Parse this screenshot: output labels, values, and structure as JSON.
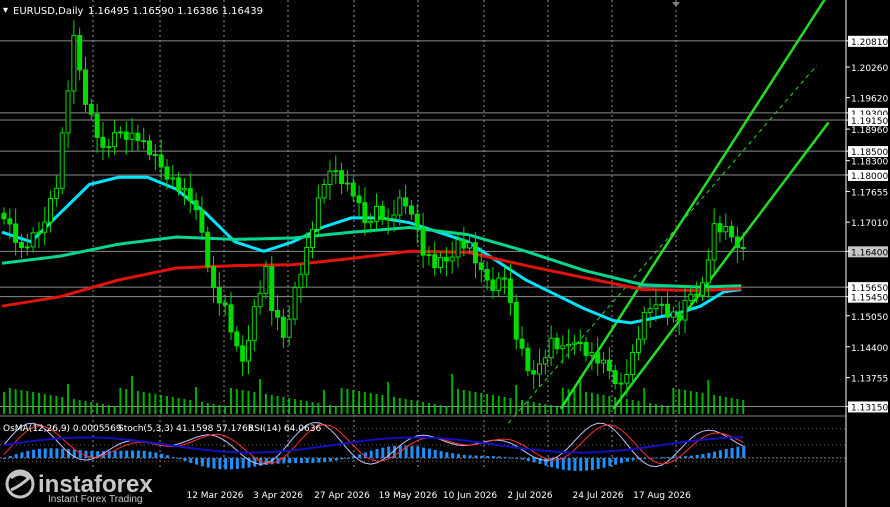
{
  "header": {
    "symbol": "EURUSD,Daily",
    "ohlc": "1.16495 1.16590 1.16386 1.16439"
  },
  "indicator_header": {
    "osma": "OsMA(12,26,9) 0.0005569",
    "stoch": "Stoch(5,3,3) 41.1598 57.1765",
    "rsi": "RSI(14) 64.0636"
  },
  "watermark": {
    "brand": "instaforex",
    "tagline": "Instant Forex Trading"
  },
  "colors": {
    "background": "#000000",
    "candle": "#00dc00",
    "ema_fast": "#00e5ff",
    "ema_mid": "#00d890",
    "ema_slow": "#e0140c",
    "channel": "#20e020",
    "level_line": "#8c8c8c",
    "grid": "#ffffff",
    "label_bg": "#ffffff",
    "current_label_bg": "#c8c8c8",
    "osma": "#1e90ff",
    "stoch_main": "#c0c0ff",
    "stoch_signal": "#ff3030",
    "rsi": "#1010c0"
  },
  "chart_data": {
    "type": "line",
    "title": "EURUSD,Daily",
    "x_ticks": [
      "12 Mar 2026",
      "3 Apr 2026",
      "27 Apr 2026",
      "19 May 2026",
      "10 Jun 2026",
      "2 Jul 2026",
      "24 Jul 2026",
      "17 Aug 2026"
    ],
    "y_ticks": [
      "1.20810",
      "1.20260",
      "1.19620",
      "1.19300",
      "1.19150",
      "1.18960",
      "1.18500",
      "1.18300",
      "1.18000",
      "1.17655",
      "1.17010",
      "1.16400",
      "1.15650",
      "1.15450",
      "1.15050",
      "1.14400",
      "1.13755",
      "1.13150"
    ],
    "highlight_levels": [
      "1.20810",
      "1.19300",
      "1.19150",
      "1.18500",
      "1.18000",
      "1.16400",
      "1.15650",
      "1.15450",
      "1.13150"
    ],
    "current_price": "1.16400",
    "ylim": [
      1.1295,
      1.2133
    ],
    "price_path": [
      [
        0,
        1.172
      ],
      [
        3,
        1.164
      ],
      [
        6,
        1.168
      ],
      [
        9,
        1.178
      ],
      [
        12,
        1.208
      ],
      [
        14,
        1.196
      ],
      [
        17,
        1.185
      ],
      [
        20,
        1.189
      ],
      [
        23,
        1.188
      ],
      [
        26,
        1.183
      ],
      [
        29,
        1.179
      ],
      [
        32,
        1.175
      ],
      [
        34,
        1.168
      ],
      [
        36,
        1.156
      ],
      [
        38,
        1.152
      ],
      [
        40,
        1.143
      ],
      [
        41,
        1.141
      ],
      [
        43,
        1.152
      ],
      [
        45,
        1.16
      ],
      [
        46,
        1.152
      ],
      [
        48,
        1.146
      ],
      [
        50,
        1.156
      ],
      [
        52,
        1.164
      ],
      [
        54,
        1.174
      ],
      [
        56,
        1.182
      ],
      [
        58,
        1.179
      ],
      [
        60,
        1.176
      ],
      [
        62,
        1.17
      ],
      [
        64,
        1.173
      ],
      [
        66,
        1.17
      ],
      [
        68,
        1.174
      ],
      [
        70,
        1.173
      ],
      [
        72,
        1.164
      ],
      [
        74,
        1.161
      ],
      [
        76,
        1.162
      ],
      [
        78,
        1.166
      ],
      [
        80,
        1.165
      ],
      [
        82,
        1.159
      ],
      [
        84,
        1.157
      ],
      [
        86,
        1.159
      ],
      [
        88,
        1.146
      ],
      [
        90,
        1.139
      ],
      [
        92,
        1.14
      ],
      [
        94,
        1.145
      ],
      [
        96,
        1.143
      ],
      [
        98,
        1.146
      ],
      [
        100,
        1.143
      ],
      [
        102,
        1.141
      ],
      [
        104,
        1.139
      ],
      [
        106,
        1.136
      ],
      [
        108,
        1.142
      ],
      [
        110,
        1.15
      ],
      [
        112,
        1.154
      ],
      [
        114,
        1.151
      ],
      [
        116,
        1.15
      ],
      [
        118,
        1.155
      ],
      [
        120,
        1.157
      ],
      [
        122,
        1.169
      ],
      [
        124,
        1.168
      ],
      [
        126,
        1.166
      ],
      [
        127,
        1.1644
      ]
    ],
    "series": [
      {
        "name": "EMA fast",
        "values": [
          [
            0,
            1.168
          ],
          [
            5,
            1.166
          ],
          [
            10,
            1.172
          ],
          [
            15,
            1.178
          ],
          [
            20,
            1.1795
          ],
          [
            25,
            1.1795
          ],
          [
            30,
            1.177
          ],
          [
            35,
            1.172
          ],
          [
            40,
            1.166
          ],
          [
            45,
            1.164
          ],
          [
            50,
            1.166
          ],
          [
            55,
            1.169
          ],
          [
            60,
            1.171
          ],
          [
            65,
            1.171
          ],
          [
            70,
            1.17
          ],
          [
            75,
            1.168
          ],
          [
            80,
            1.166
          ],
          [
            85,
            1.162
          ],
          [
            90,
            1.158
          ],
          [
            95,
            1.155
          ],
          [
            100,
            1.152
          ],
          [
            105,
            1.1495
          ],
          [
            108,
            1.149
          ],
          [
            112,
            1.15
          ],
          [
            116,
            1.151
          ],
          [
            120,
            1.1525
          ],
          [
            124,
            1.1555
          ],
          [
            127,
            1.156
          ]
        ]
      },
      {
        "name": "EMA mid",
        "values": [
          [
            0,
            1.1615
          ],
          [
            10,
            1.163
          ],
          [
            20,
            1.1655
          ],
          [
            30,
            1.167
          ],
          [
            40,
            1.1665
          ],
          [
            50,
            1.1668
          ],
          [
            60,
            1.168
          ],
          [
            70,
            1.169
          ],
          [
            80,
            1.1675
          ],
          [
            90,
            1.164
          ],
          [
            100,
            1.16
          ],
          [
            110,
            1.157
          ],
          [
            120,
            1.1565
          ],
          [
            127,
            1.1568
          ]
        ]
      },
      {
        "name": "EMA slow",
        "values": [
          [
            0,
            1.1525
          ],
          [
            10,
            1.1545
          ],
          [
            20,
            1.158
          ],
          [
            30,
            1.1605
          ],
          [
            40,
            1.161
          ],
          [
            50,
            1.1612
          ],
          [
            60,
            1.1625
          ],
          [
            70,
            1.164
          ],
          [
            80,
            1.1638
          ],
          [
            90,
            1.161
          ],
          [
            100,
            1.1585
          ],
          [
            110,
            1.156
          ],
          [
            120,
            1.1558
          ],
          [
            127,
            1.1562
          ]
        ]
      }
    ],
    "channel": {
      "upper": [
        [
          96,
          1.131
        ],
        [
          142,
          1.218
        ]
      ],
      "middle": [
        [
          87,
          1.128
        ],
        [
          140,
          1.203
        ]
      ],
      "lower": [
        [
          105,
          1.131
        ],
        [
          142,
          1.191
        ]
      ]
    }
  }
}
